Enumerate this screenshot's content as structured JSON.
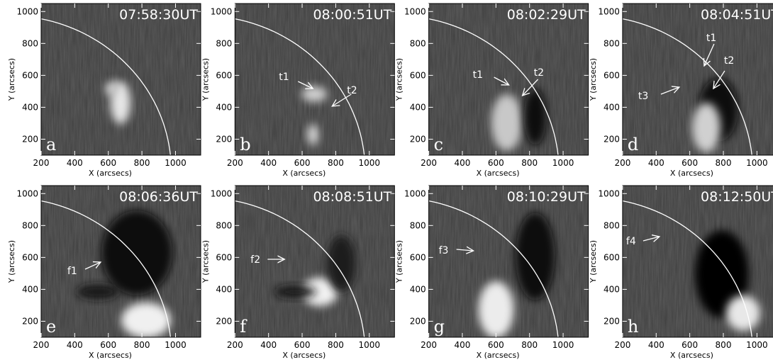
{
  "axes": {
    "x_label": "X (arcsecs)",
    "y_label": "Y (arcsecs)",
    "xlim": [
      200,
      1150
    ],
    "ylim": [
      100,
      1050
    ],
    "xticks": [
      200,
      400,
      600,
      800,
      1000
    ],
    "yticks": [
      200,
      400,
      600,
      800,
      1000
    ]
  },
  "panels": [
    {
      "letter": "a",
      "time": "07:58:30UT",
      "annotations": []
    },
    {
      "letter": "b",
      "time": "08:00:51UT",
      "annotations": [
        "t1",
        "t2"
      ]
    },
    {
      "letter": "c",
      "time": "08:02:29UT",
      "annotations": [
        "t1",
        "t2"
      ]
    },
    {
      "letter": "d",
      "time": "08:04:51UT",
      "annotations": [
        "t1",
        "t2",
        "t3"
      ]
    },
    {
      "letter": "e",
      "time": "08:06:36UT",
      "annotations": [
        "f1"
      ]
    },
    {
      "letter": "f",
      "time": "08:08:51UT",
      "annotations": [
        "f2"
      ]
    },
    {
      "letter": "g",
      "time": "08:10:29UT",
      "annotations": [
        "f3"
      ]
    },
    {
      "letter": "h",
      "time": "08:12:50UT",
      "annotations": [
        "f4"
      ]
    }
  ]
}
